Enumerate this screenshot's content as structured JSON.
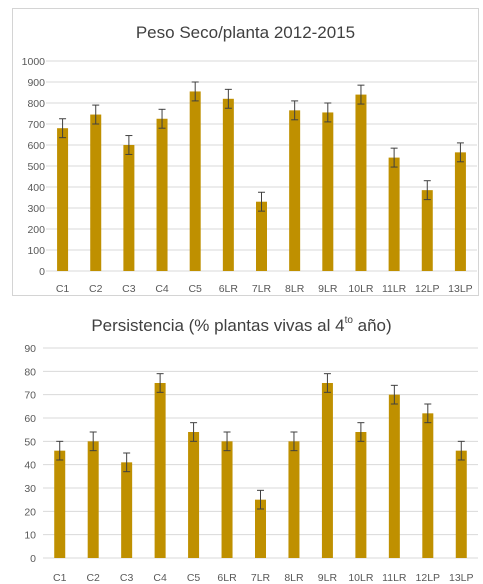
{
  "chart_data": [
    {
      "type": "bar",
      "title": "Peso Seco/planta 2012-2015",
      "categories": [
        "C1",
        "C2",
        "C3",
        "C4",
        "C5",
        "6LR",
        "7LR",
        "8LR",
        "9LR",
        "10LR",
        "11LR",
        "12LP",
        "13LP"
      ],
      "values": [
        680,
        745,
        600,
        725,
        855,
        820,
        330,
        765,
        755,
        840,
        540,
        385,
        565
      ],
      "errors": [
        45,
        45,
        45,
        45,
        45,
        45,
        45,
        45,
        45,
        45,
        45,
        45,
        45
      ],
      "ylim": [
        0,
        1000
      ],
      "yticks": [
        "0",
        "100",
        "200",
        "300",
        "400",
        "500",
        "600",
        "700",
        "800",
        "900",
        "1000"
      ],
      "grid": true,
      "bar_color": "#bf9000",
      "grid_color": "#d9d9d9"
    },
    {
      "type": "bar",
      "title_main": "Persistencia (% plantas vivas al 4",
      "title_sup": "to",
      "title_end": " año)",
      "categories": [
        "C1",
        "C2",
        "C3",
        "C4",
        "C5",
        "6LR",
        "7LR",
        "8LR",
        "9LR",
        "10LR",
        "11LR",
        "12LP",
        "13LP"
      ],
      "values": [
        46,
        50,
        41,
        75,
        54,
        50,
        25,
        50,
        75,
        54,
        70,
        62,
        46
      ],
      "errors": [
        4,
        4,
        4,
        4,
        4,
        4,
        4,
        4,
        4,
        4,
        4,
        4,
        4
      ],
      "ylim": [
        0,
        90
      ],
      "yticks": [
        "0",
        "10",
        "20",
        "30",
        "40",
        "50",
        "60",
        "70",
        "80",
        "90"
      ],
      "grid": true,
      "bar_color": "#bf9000",
      "grid_color": "#d9d9d9"
    }
  ]
}
